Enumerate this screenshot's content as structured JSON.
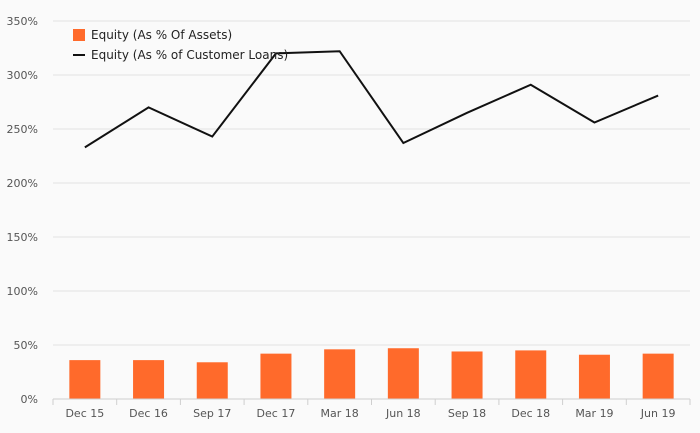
{
  "chart_data": {
    "type": "bar+line",
    "categories": [
      "Dec 15",
      "Dec 16",
      "Sep 17",
      "Dec 17",
      "Mar 18",
      "Jun 18",
      "Sep 18",
      "Dec 18",
      "Mar 19",
      "Jun 19"
    ],
    "series": [
      {
        "name": "Equity (As % Of Assets)",
        "type": "bar",
        "color": "#ff6a2b",
        "values": [
          36,
          36,
          34,
          42,
          46,
          47,
          44,
          45,
          41,
          42
        ]
      },
      {
        "name": "Equity (As % of Customer Loans)",
        "type": "line",
        "color": "#111111",
        "values": [
          233,
          270,
          243,
          320,
          322,
          237,
          265,
          291,
          256,
          281
        ]
      }
    ],
    "yticks": [
      "0%",
      "50%",
      "100%",
      "150%",
      "200%",
      "250%",
      "300%",
      "350%"
    ],
    "ylim": [
      0,
      350
    ],
    "grid": true,
    "legend_position": "top-left"
  }
}
